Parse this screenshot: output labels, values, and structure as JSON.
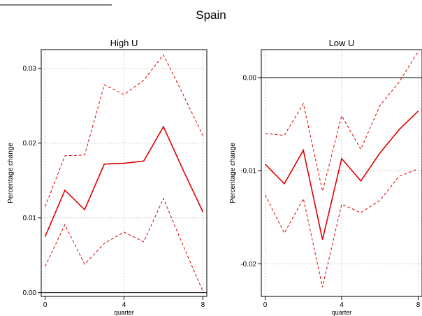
{
  "figure": {
    "title": "Spain"
  },
  "chart_data": [
    {
      "type": "line",
      "title": "High U",
      "xlabel": "quarter",
      "ylabel": "Percentage change",
      "xlim": [
        -0.2,
        8.2
      ],
      "ylim": [
        -0.0005,
        0.0325
      ],
      "xticks": [
        0,
        4,
        8
      ],
      "yticks": [
        0.0,
        0.01,
        0.02,
        0.03
      ],
      "ytick_labels": [
        "0.00",
        "0.01",
        "0.02",
        "0.03"
      ],
      "grid": true,
      "x": [
        0,
        1,
        2,
        3,
        4,
        5,
        6,
        7,
        8
      ],
      "series": [
        {
          "role": "upper",
          "style": "dashed",
          "color": "#e00000",
          "values": [
            0.0115,
            0.0183,
            0.0184,
            0.0278,
            0.0265,
            0.0284,
            0.0318,
            0.0265,
            0.021
          ]
        },
        {
          "role": "estimate",
          "style": "solid",
          "color": "#e00000",
          "values": [
            0.0075,
            0.0137,
            0.0111,
            0.0172,
            0.0173,
            0.0176,
            0.0222,
            0.0164,
            0.0108
          ]
        },
        {
          "role": "lower",
          "style": "dashed",
          "color": "#e00000",
          "values": [
            0.0035,
            0.0091,
            0.0038,
            0.0066,
            0.0081,
            0.0068,
            0.0126,
            0.0063,
            0.0002
          ]
        }
      ]
    },
    {
      "type": "line",
      "title": "Low U",
      "xlabel": "quarter",
      "ylabel": "Percentage change",
      "xlim": [
        -0.2,
        8.2
      ],
      "ylim": [
        -0.0235,
        0.003
      ],
      "xticks": [
        0,
        4,
        8
      ],
      "yticks": [
        0.0,
        -0.01,
        -0.02
      ],
      "ytick_labels": [
        "0.00",
        "-0.01",
        "-0.02"
      ],
      "grid": true,
      "x": [
        0,
        1,
        2,
        3,
        4,
        5,
        6,
        7,
        8
      ],
      "series": [
        {
          "role": "upper",
          "style": "dashed",
          "color": "#e00000",
          "values": [
            -0.006,
            -0.0062,
            -0.0028,
            -0.0122,
            -0.0041,
            -0.0077,
            -0.003,
            -0.0005,
            0.0028
          ]
        },
        {
          "role": "estimate",
          "style": "solid",
          "color": "#e00000",
          "values": [
            -0.0093,
            -0.0114,
            -0.0078,
            -0.0174,
            -0.0087,
            -0.0111,
            -0.0081,
            -0.0056,
            -0.0036
          ]
        },
        {
          "role": "lower",
          "style": "dashed",
          "color": "#e00000",
          "values": [
            -0.0126,
            -0.0167,
            -0.013,
            -0.0225,
            -0.0136,
            -0.0145,
            -0.0132,
            -0.0106,
            -0.0098
          ]
        }
      ]
    }
  ]
}
